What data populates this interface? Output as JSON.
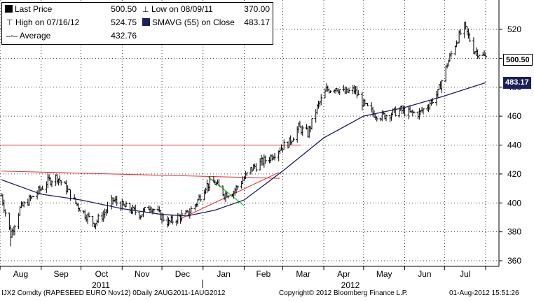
{
  "legend": {
    "last_price_label": "Last Price",
    "last_price_value": "500.50",
    "low_label": "Low on 08/09/11",
    "low_value": "370.00",
    "high_label": "High on 07/16/12",
    "high_value": "524.75",
    "smavg_label": "SMAVG (55) on Close",
    "smavg_value": "483.17",
    "average_label": "Average",
    "average_value": "432.76"
  },
  "price_tags": {
    "last": "500.50",
    "smavg": "483.17"
  },
  "footer": {
    "left": "IJX2 Comdty (RAPESEED  EURO    Nov12) 0Daily 2AUG2011-1AUG2012",
    "center": "Copyright© 2012 Bloomberg Finance L.P.",
    "right": "01-Aug-2012 15:51:26"
  },
  "colors": {
    "price": "#000000",
    "smavg": "#1a1f5e",
    "trend": "#e8292b",
    "flag": "#2bd12b",
    "grid": "#000000"
  },
  "chart_data": {
    "type": "bar",
    "title": "",
    "xlabel": "",
    "ylabel": "",
    "y_ticks": [
      360,
      380,
      400,
      420,
      440,
      460,
      480,
      500,
      520
    ],
    "ylim": [
      355,
      535
    ],
    "x_month_labels": [
      "Aug",
      "Sep",
      "Oct",
      "Nov",
      "Dec",
      "Jan",
      "Feb",
      "Mar",
      "Apr",
      "May",
      "Jun",
      "Jul"
    ],
    "year_labels": [
      "2011",
      "2012"
    ],
    "grid": true,
    "price_monthly_approx": [
      {
        "x": "2011-08-02",
        "y": 405
      },
      {
        "x": "2011-08-09",
        "y": 378
      },
      {
        "x": "2011-08-16",
        "y": 396
      },
      {
        "x": "2011-08-23",
        "y": 402
      },
      {
        "x": "2011-08-30",
        "y": 408
      },
      {
        "x": "2011-09-06",
        "y": 415
      },
      {
        "x": "2011-09-13",
        "y": 418
      },
      {
        "x": "2011-09-20",
        "y": 410
      },
      {
        "x": "2011-09-27",
        "y": 400
      },
      {
        "x": "2011-10-04",
        "y": 392
      },
      {
        "x": "2011-10-11",
        "y": 386
      },
      {
        "x": "2011-10-18",
        "y": 392
      },
      {
        "x": "2011-10-25",
        "y": 402
      },
      {
        "x": "2011-11-01",
        "y": 398
      },
      {
        "x": "2011-11-08",
        "y": 395
      },
      {
        "x": "2011-11-15",
        "y": 392
      },
      {
        "x": "2011-11-22",
        "y": 398
      },
      {
        "x": "2011-11-29",
        "y": 392
      },
      {
        "x": "2011-12-06",
        "y": 386
      },
      {
        "x": "2011-12-13",
        "y": 390
      },
      {
        "x": "2011-12-20",
        "y": 392
      },
      {
        "x": "2011-12-27",
        "y": 400
      },
      {
        "x": "2012-01-03",
        "y": 412
      },
      {
        "x": "2012-01-10",
        "y": 414
      },
      {
        "x": "2012-01-17",
        "y": 406
      },
      {
        "x": "2012-01-24",
        "y": 408
      },
      {
        "x": "2012-01-31",
        "y": 416
      },
      {
        "x": "2012-02-07",
        "y": 424
      },
      {
        "x": "2012-02-14",
        "y": 428
      },
      {
        "x": "2012-02-21",
        "y": 432
      },
      {
        "x": "2012-02-28",
        "y": 438
      },
      {
        "x": "2012-03-06",
        "y": 442
      },
      {
        "x": "2012-03-13",
        "y": 452
      },
      {
        "x": "2012-03-20",
        "y": 448
      },
      {
        "x": "2012-03-27",
        "y": 466
      },
      {
        "x": "2012-04-03",
        "y": 478
      },
      {
        "x": "2012-04-10",
        "y": 480
      },
      {
        "x": "2012-04-17",
        "y": 476
      },
      {
        "x": "2012-04-24",
        "y": 478
      },
      {
        "x": "2012-05-01",
        "y": 468
      },
      {
        "x": "2012-05-08",
        "y": 462
      },
      {
        "x": "2012-05-15",
        "y": 460
      },
      {
        "x": "2012-05-22",
        "y": 462
      },
      {
        "x": "2012-05-29",
        "y": 464
      },
      {
        "x": "2012-06-05",
        "y": 462
      },
      {
        "x": "2012-06-12",
        "y": 462
      },
      {
        "x": "2012-06-19",
        "y": 468
      },
      {
        "x": "2012-06-26",
        "y": 476
      },
      {
        "x": "2012-07-03",
        "y": 496
      },
      {
        "x": "2012-07-10",
        "y": 512
      },
      {
        "x": "2012-07-16",
        "y": 522
      },
      {
        "x": "2012-07-23",
        "y": 506
      },
      {
        "x": "2012-08-01",
        "y": 500.5
      }
    ],
    "smavg_55_approx": [
      {
        "x": "2011-08-02",
        "y": 416
      },
      {
        "x": "2011-09-01",
        "y": 406
      },
      {
        "x": "2011-10-01",
        "y": 402
      },
      {
        "x": "2011-11-01",
        "y": 396
      },
      {
        "x": "2011-12-01",
        "y": 392
      },
      {
        "x": "2011-12-20",
        "y": 391
      },
      {
        "x": "2012-01-10",
        "y": 395
      },
      {
        "x": "2012-02-01",
        "y": 402
      },
      {
        "x": "2012-03-01",
        "y": 422
      },
      {
        "x": "2012-04-01",
        "y": 445
      },
      {
        "x": "2012-05-01",
        "y": 460
      },
      {
        "x": "2012-06-01",
        "y": 466
      },
      {
        "x": "2012-07-01",
        "y": 474
      },
      {
        "x": "2012-08-01",
        "y": 483.17
      }
    ],
    "horizontal_line": {
      "y": 440,
      "x_from": "2011-08-02",
      "x_to": "2012-03-15"
    },
    "trend_lines": [
      {
        "x1": "2011-08-02",
        "y1": 422,
        "x2": "2012-02-28",
        "y2": 417
      },
      {
        "x1": "2011-12-15",
        "y1": 389,
        "x2": "2012-02-27",
        "y2": 421
      }
    ],
    "flag_line": {
      "x1": "2012-01-05",
      "y1": 418,
      "x2": "2012-02-01",
      "y2": 398
    }
  }
}
